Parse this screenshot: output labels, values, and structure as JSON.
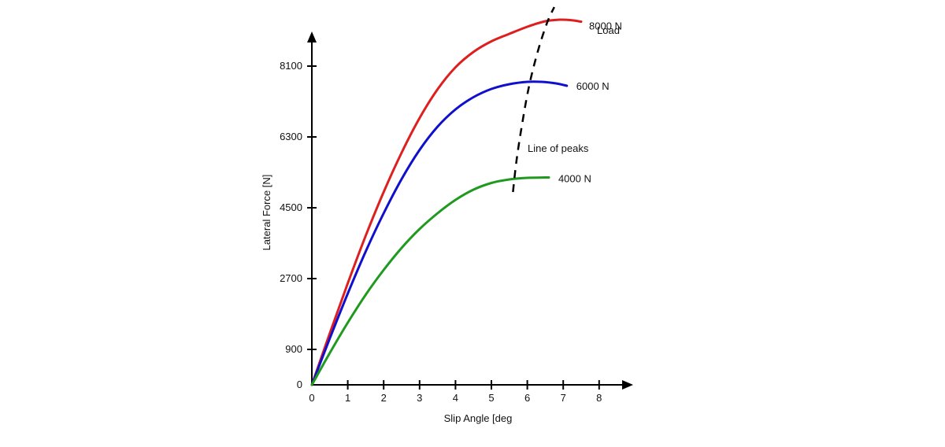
{
  "chart_data": {
    "type": "line",
    "title": "",
    "xlabel": "Slip Angle [deg",
    "ylabel": "Lateral Force [N]",
    "xlim": [
      0,
      8.9
    ],
    "ylim": [
      0,
      9000
    ],
    "xticks": [
      0,
      1,
      2,
      3,
      4,
      5,
      6,
      7,
      8
    ],
    "yticks": [
      0,
      900,
      2700,
      4500,
      6300,
      8100
    ],
    "xtick_labels": [
      "0",
      "1",
      "2",
      "3",
      "4",
      "5",
      "6",
      "7",
      "8"
    ],
    "ytick_labels": [
      "0",
      "900",
      "2700",
      "4500",
      "6300",
      "8100"
    ],
    "grid": false,
    "series": [
      {
        "name": "8000 N",
        "color": "#dd1f1f",
        "x": [
          0,
          0.5,
          1,
          1.5,
          2,
          2.5,
          3,
          3.5,
          4,
          4.5,
          5,
          5.5,
          6,
          6.5,
          6.9,
          7.2,
          7.5
        ],
        "y": [
          0,
          1310,
          2580,
          3790,
          4900,
          5900,
          6780,
          7510,
          8070,
          8460,
          8730,
          8920,
          9100,
          9240,
          9280,
          9270,
          9230
        ]
      },
      {
        "name": "6000 N",
        "color": "#1010cc",
        "x": [
          0,
          0.5,
          1,
          1.5,
          2,
          2.5,
          3,
          3.5,
          4,
          4.5,
          5,
          5.5,
          6,
          6.4,
          6.8,
          7.1
        ],
        "y": [
          0,
          1180,
          2320,
          3390,
          4360,
          5230,
          5970,
          6560,
          7000,
          7310,
          7520,
          7640,
          7700,
          7700,
          7660,
          7600
        ]
      },
      {
        "name": "4000 N",
        "color": "#1f9a1f",
        "x": [
          0,
          0.5,
          1,
          1.5,
          2,
          2.5,
          3,
          3.5,
          4,
          4.5,
          5,
          5.5,
          6,
          6.5,
          6.6
        ],
        "y": [
          0,
          810,
          1580,
          2290,
          2920,
          3480,
          3960,
          4360,
          4700,
          4960,
          5130,
          5220,
          5260,
          5270,
          5270
        ]
      }
    ],
    "peak_line": {
      "name": "Line of peaks",
      "x": [
        5.6,
        5.7,
        5.85,
        6.05,
        6.3,
        6.55,
        6.75
      ],
      "y": [
        4900,
        5700,
        6600,
        7600,
        8500,
        9200,
        9600
      ]
    },
    "annotations": {
      "load_label": "Load",
      "peak_label": "Line of peaks"
    }
  }
}
